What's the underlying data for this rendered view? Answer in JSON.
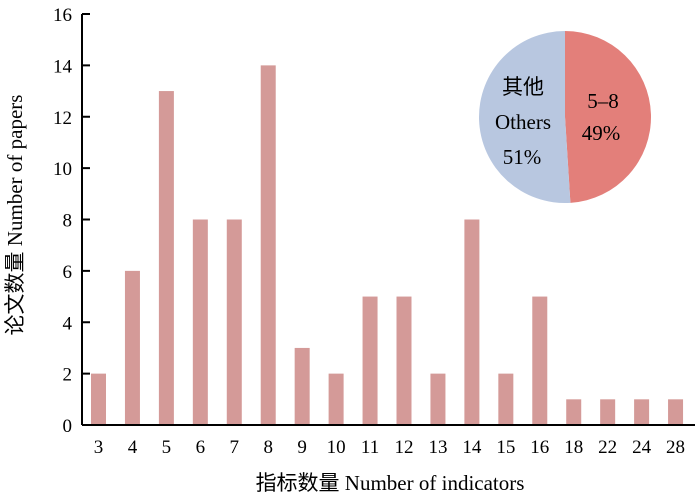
{
  "chart_data": [
    {
      "type": "bar",
      "categories": [
        "3",
        "4",
        "5",
        "6",
        "7",
        "8",
        "9",
        "10",
        "11",
        "12",
        "13",
        "14",
        "15",
        "16",
        "18",
        "22",
        "24",
        "28"
      ],
      "values": [
        2,
        6,
        13,
        8,
        8,
        14,
        3,
        2,
        5,
        5,
        2,
        8,
        2,
        5,
        1,
        1,
        1,
        1
      ],
      "xlabel": "指标数量 Number of indicators",
      "ylabel": "论文数量 Number of papers",
      "ylim": [
        0,
        16
      ],
      "yticks": [
        "0",
        "2",
        "4",
        "6",
        "8",
        "10",
        "12",
        "14",
        "16"
      ],
      "grid": false,
      "colors": {
        "bar": "#d49a98",
        "axis": "#000000"
      }
    },
    {
      "type": "pie",
      "slices": [
        {
          "label_cn": "",
          "label_en": "5–8",
          "percent": 49,
          "percent_text": "49%",
          "color": "#e37f7a"
        },
        {
          "label_cn": "其他",
          "label_en": "Others",
          "percent": 51,
          "percent_text": "51%",
          "color": "#b8c7e0"
        }
      ],
      "placement": "top-right"
    }
  ]
}
